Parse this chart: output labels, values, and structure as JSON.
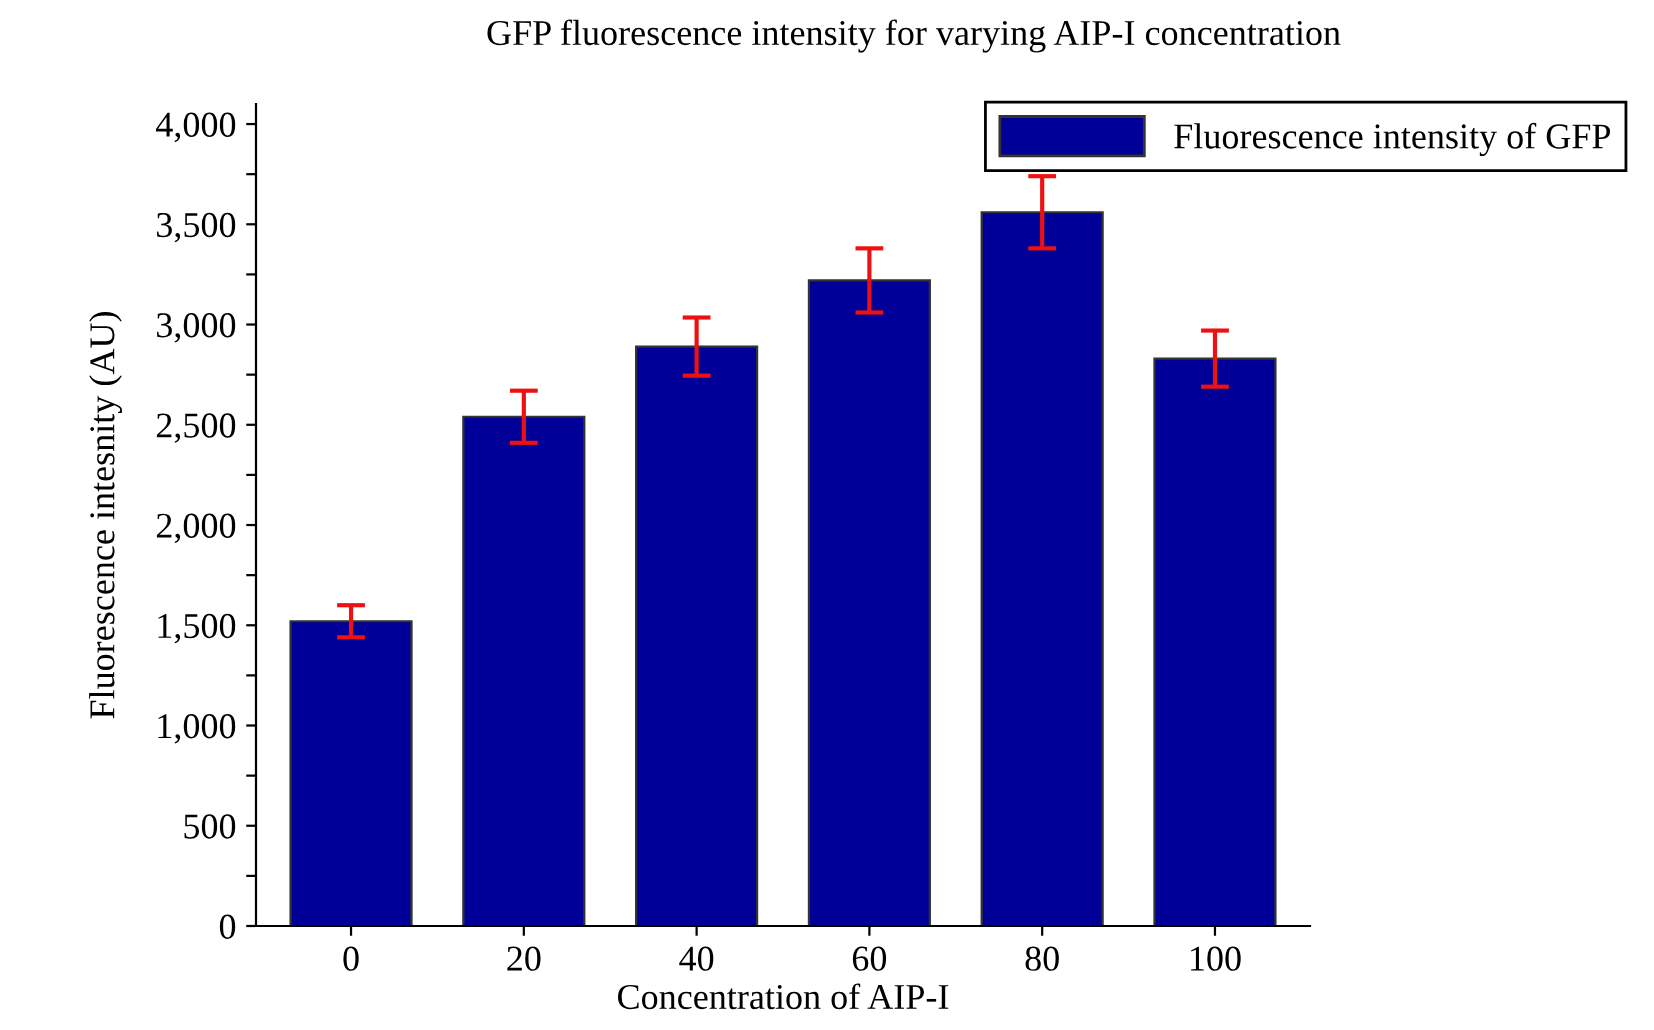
{
  "chart_data": {
    "type": "bar",
    "title": "GFP fluorescence intensity for varying AIP-I concentration",
    "xlabel": "Concentration of AIP-I",
    "ylabel": "Fluorescence intesnity (AU)",
    "categories": [
      "0",
      "20",
      "40",
      "60",
      "80",
      "100"
    ],
    "series": [
      {
        "name": "Fluorescence intensity of GFP",
        "color": "#000099",
        "values": [
          1520,
          2540,
          2890,
          3220,
          3560,
          2830
        ],
        "errors": [
          80,
          130,
          145,
          160,
          180,
          140
        ]
      }
    ],
    "ylim": [
      0,
      4100
    ],
    "yticks": [
      0,
      {
        "value": 250,
        "label": null
      },
      500,
      {
        "value": 750,
        "label": null
      },
      {
        "value": 1000,
        "label": "1,000"
      },
      {
        "value": 1250,
        "label": null
      },
      {
        "value": 1500,
        "label": "1,500"
      },
      {
        "value": 1750,
        "label": null
      },
      {
        "value": 2000,
        "label": "2,000"
      },
      {
        "value": 2250,
        "label": null
      },
      {
        "value": 2500,
        "label": "2,500"
      },
      {
        "value": 2750,
        "label": null
      },
      {
        "value": 3000,
        "label": "3,000"
      },
      {
        "value": 3250,
        "label": null
      },
      {
        "value": 3500,
        "label": "3,500"
      },
      {
        "value": 3750,
        "label": null
      },
      {
        "value": 4000,
        "label": "4,000"
      }
    ],
    "grid": false,
    "legend": "top right"
  }
}
